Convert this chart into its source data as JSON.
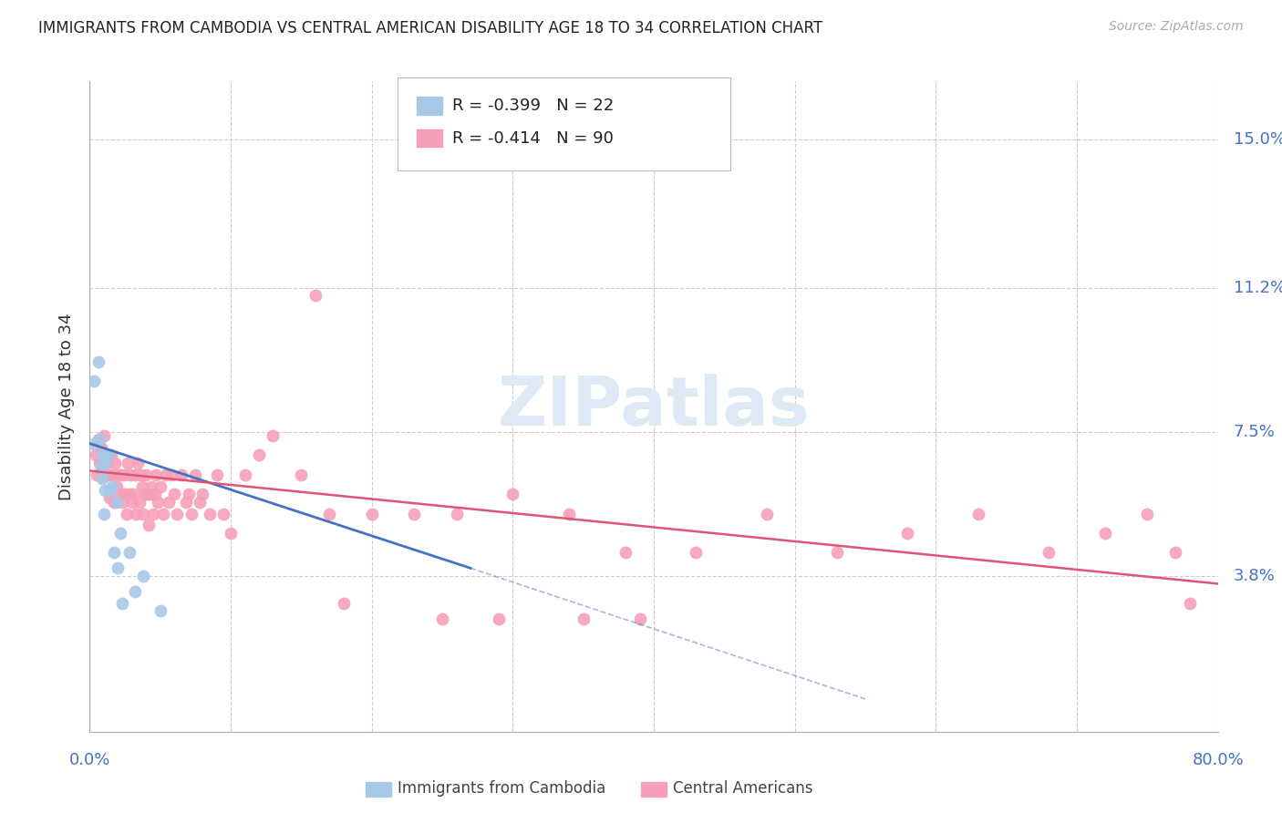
{
  "title": "IMMIGRANTS FROM CAMBODIA VS CENTRAL AMERICAN DISABILITY AGE 18 TO 34 CORRELATION CHART",
  "source": "Source: ZipAtlas.com",
  "ylabel": "Disability Age 18 to 34",
  "ytick_labels": [
    "15.0%",
    "11.2%",
    "7.5%",
    "3.8%"
  ],
  "ytick_values": [
    0.15,
    0.112,
    0.075,
    0.038
  ],
  "xlim": [
    0.0,
    0.8
  ],
  "ylim": [
    -0.002,
    0.165
  ],
  "watermark": "ZIPatlas",
  "legend_cambodia_R": "-0.399",
  "legend_cambodia_N": "22",
  "legend_central_R": "-0.414",
  "legend_central_N": "90",
  "cambodia_color": "#a8c8e8",
  "central_color": "#f5a0b8",
  "cambodia_line_color": "#4472c4",
  "central_line_color": "#e05575",
  "axis_label_color": "#4472c4",
  "grid_color": "#cccccc",
  "background_color": "#ffffff",
  "cam_line_x0": 0.0,
  "cam_line_y0": 0.072,
  "cam_line_x1": 0.27,
  "cam_line_y1": 0.04,
  "cen_line_x0": 0.0,
  "cen_line_y0": 0.065,
  "cen_line_x1": 0.8,
  "cen_line_y1": 0.036,
  "cambodia_x": [
    0.003,
    0.003,
    0.006,
    0.007,
    0.008,
    0.009,
    0.009,
    0.01,
    0.011,
    0.011,
    0.013,
    0.014,
    0.016,
    0.017,
    0.019,
    0.02,
    0.022,
    0.023,
    0.028,
    0.032,
    0.038,
    0.05
  ],
  "cambodia_y": [
    0.088,
    0.072,
    0.093,
    0.073,
    0.066,
    0.069,
    0.063,
    0.054,
    0.067,
    0.06,
    0.069,
    0.06,
    0.061,
    0.044,
    0.057,
    0.04,
    0.049,
    0.031,
    0.044,
    0.034,
    0.038,
    0.029
  ],
  "central_x": [
    0.004,
    0.005,
    0.006,
    0.007,
    0.008,
    0.009,
    0.01,
    0.011,
    0.012,
    0.013,
    0.014,
    0.015,
    0.016,
    0.017,
    0.018,
    0.019,
    0.02,
    0.021,
    0.022,
    0.023,
    0.024,
    0.025,
    0.026,
    0.027,
    0.028,
    0.029,
    0.03,
    0.031,
    0.032,
    0.033,
    0.034,
    0.035,
    0.036,
    0.037,
    0.038,
    0.039,
    0.04,
    0.041,
    0.042,
    0.043,
    0.044,
    0.045,
    0.046,
    0.047,
    0.048,
    0.05,
    0.052,
    0.054,
    0.056,
    0.058,
    0.06,
    0.062,
    0.065,
    0.068,
    0.07,
    0.072,
    0.075,
    0.078,
    0.08,
    0.085,
    0.09,
    0.095,
    0.1,
    0.11,
    0.12,
    0.13,
    0.15,
    0.17,
    0.2,
    0.23,
    0.26,
    0.3,
    0.34,
    0.38,
    0.43,
    0.48,
    0.53,
    0.58,
    0.63,
    0.68,
    0.72,
    0.75,
    0.77,
    0.78,
    0.39,
    0.29,
    0.35,
    0.25,
    0.18,
    0.16
  ],
  "central_y": [
    0.069,
    0.064,
    0.073,
    0.067,
    0.071,
    0.064,
    0.074,
    0.064,
    0.067,
    0.064,
    0.058,
    0.069,
    0.064,
    0.057,
    0.067,
    0.061,
    0.064,
    0.059,
    0.064,
    0.057,
    0.064,
    0.059,
    0.054,
    0.067,
    0.059,
    0.064,
    0.057,
    0.059,
    0.064,
    0.054,
    0.067,
    0.057,
    0.064,
    0.061,
    0.054,
    0.059,
    0.064,
    0.059,
    0.051,
    0.059,
    0.061,
    0.054,
    0.059,
    0.064,
    0.057,
    0.061,
    0.054,
    0.064,
    0.057,
    0.064,
    0.059,
    0.054,
    0.064,
    0.057,
    0.059,
    0.054,
    0.064,
    0.057,
    0.059,
    0.054,
    0.064,
    0.054,
    0.049,
    0.064,
    0.069,
    0.074,
    0.064,
    0.054,
    0.054,
    0.054,
    0.054,
    0.059,
    0.054,
    0.044,
    0.044,
    0.054,
    0.044,
    0.049,
    0.054,
    0.044,
    0.049,
    0.054,
    0.044,
    0.031,
    0.027,
    0.027,
    0.027,
    0.027,
    0.031,
    0.11
  ]
}
